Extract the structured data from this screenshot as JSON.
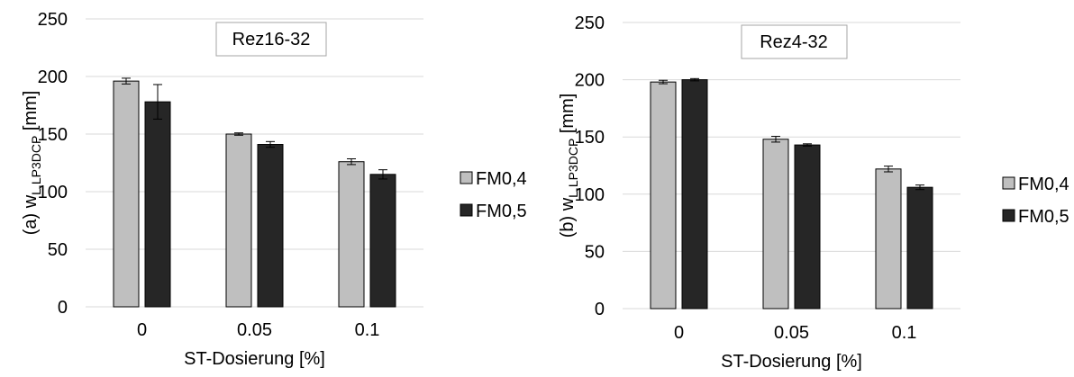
{
  "chart_data": [
    {
      "type": "bar",
      "title": "Rez16-32",
      "xlabel": "ST-Dosierung [%]",
      "ylabel_main": "(a) w",
      "ylabel_sub": "L,LP3DCP",
      "ylabel_unit": " [mm]",
      "categories": [
        "0",
        "0.05",
        "0.1"
      ],
      "ylim": [
        0,
        250
      ],
      "yticks": [
        "0",
        "50",
        "100",
        "150",
        "200",
        "250"
      ],
      "ytick_values": [
        0,
        50,
        100,
        150,
        200,
        250
      ],
      "grid": true,
      "legend_position": "right",
      "series": [
        {
          "name": "FM0,4",
          "color": "#bfbfbf",
          "values": [
            196,
            150,
            126
          ],
          "errors": [
            2.5,
            1,
            2.5
          ]
        },
        {
          "name": "FM0,5",
          "color": "#262626",
          "values": [
            178,
            141,
            115
          ],
          "errors": [
            15,
            2.5,
            4
          ]
        }
      ]
    },
    {
      "type": "bar",
      "title": "Rez4-32",
      "xlabel": "ST-Dosierung [%]",
      "ylabel_main": "(b) w",
      "ylabel_sub": "L,LP3DCP",
      "ylabel_unit": " [mm]",
      "categories": [
        "0",
        "0.05",
        "0.1"
      ],
      "ylim": [
        0,
        250
      ],
      "yticks": [
        "0",
        "50",
        "100",
        "150",
        "200",
        "250"
      ],
      "ytick_values": [
        0,
        50,
        100,
        150,
        200,
        250
      ],
      "grid": true,
      "legend_position": "right",
      "series": [
        {
          "name": "FM0,4",
          "color": "#bfbfbf",
          "values": [
            198,
            148,
            122
          ],
          "errors": [
            1.5,
            2.5,
            2.5
          ]
        },
        {
          "name": "FM0,5",
          "color": "#262626",
          "values": [
            200,
            143,
            106
          ],
          "errors": [
            1,
            1,
            2
          ]
        }
      ]
    }
  ]
}
